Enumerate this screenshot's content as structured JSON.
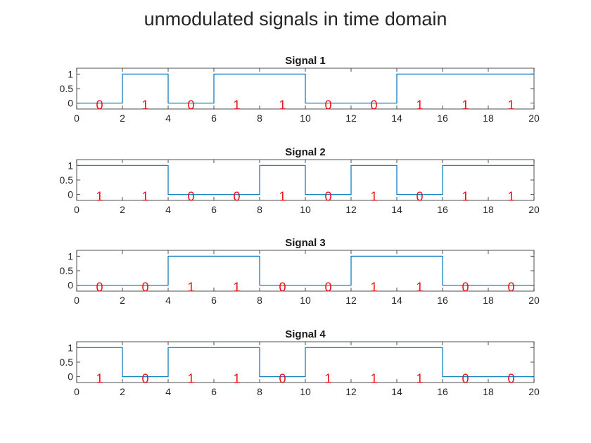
{
  "figure": {
    "title": "unmodulated signals in time domain"
  },
  "colors": {
    "line": "#0072BD",
    "bit_label": "#E8141A",
    "axis": "#262626",
    "background": "#ffffff"
  },
  "chart_data": [
    {
      "type": "line",
      "title": "Signal 1",
      "x": [
        0,
        2,
        2,
        4,
        4,
        6,
        6,
        10,
        10,
        14,
        14,
        20
      ],
      "y": [
        0,
        0,
        1,
        1,
        0,
        0,
        1,
        1,
        0,
        0,
        1,
        1
      ],
      "bits": [
        {
          "x": 1,
          "label": "0"
        },
        {
          "x": 3,
          "label": "1"
        },
        {
          "x": 5,
          "label": "0"
        },
        {
          "x": 7,
          "label": "1"
        },
        {
          "x": 9,
          "label": "1"
        },
        {
          "x": 11,
          "label": "0"
        },
        {
          "x": 13,
          "label": "0"
        },
        {
          "x": 15,
          "label": "1"
        },
        {
          "x": 17,
          "label": "1"
        },
        {
          "x": 19,
          "label": "1"
        }
      ],
      "xlim": [
        0,
        20
      ],
      "ylim": [
        -0.2,
        1.2
      ],
      "xticks": [
        0,
        2,
        4,
        6,
        8,
        10,
        12,
        14,
        16,
        18,
        20
      ],
      "yticks": [
        0,
        0.5,
        1
      ],
      "grid": false
    },
    {
      "type": "line",
      "title": "Signal 2",
      "x": [
        0,
        4,
        4,
        8,
        8,
        10,
        10,
        12,
        12,
        14,
        14,
        16,
        16,
        20
      ],
      "y": [
        1,
        1,
        0,
        0,
        1,
        1,
        0,
        0,
        1,
        1,
        0,
        0,
        1,
        1
      ],
      "bits": [
        {
          "x": 1,
          "label": "1"
        },
        {
          "x": 3,
          "label": "1"
        },
        {
          "x": 5,
          "label": "0"
        },
        {
          "x": 7,
          "label": "0"
        },
        {
          "x": 9,
          "label": "1"
        },
        {
          "x": 11,
          "label": "0"
        },
        {
          "x": 13,
          "label": "1"
        },
        {
          "x": 15,
          "label": "0"
        },
        {
          "x": 17,
          "label": "1"
        },
        {
          "x": 19,
          "label": "1"
        }
      ],
      "xlim": [
        0,
        20
      ],
      "ylim": [
        -0.2,
        1.2
      ],
      "xticks": [
        0,
        2,
        4,
        6,
        8,
        10,
        12,
        14,
        16,
        18,
        20
      ],
      "yticks": [
        0,
        0.5,
        1
      ],
      "grid": false
    },
    {
      "type": "line",
      "title": "Signal 3",
      "x": [
        0,
        4,
        4,
        8,
        8,
        12,
        12,
        16,
        16,
        20
      ],
      "y": [
        0,
        0,
        1,
        1,
        0,
        0,
        1,
        1,
        0,
        0
      ],
      "bits": [
        {
          "x": 1,
          "label": "0"
        },
        {
          "x": 3,
          "label": "0"
        },
        {
          "x": 5,
          "label": "1"
        },
        {
          "x": 7,
          "label": "1"
        },
        {
          "x": 9,
          "label": "0"
        },
        {
          "x": 11,
          "label": "0"
        },
        {
          "x": 13,
          "label": "1"
        },
        {
          "x": 15,
          "label": "1"
        },
        {
          "x": 17,
          "label": "0"
        },
        {
          "x": 19,
          "label": "0"
        }
      ],
      "xlim": [
        0,
        20
      ],
      "ylim": [
        -0.2,
        1.2
      ],
      "xticks": [
        0,
        2,
        4,
        6,
        8,
        10,
        12,
        14,
        16,
        18,
        20
      ],
      "yticks": [
        0,
        0.5,
        1
      ],
      "grid": false
    },
    {
      "type": "line",
      "title": "Signal 4",
      "x": [
        0,
        2,
        2,
        4,
        4,
        8,
        8,
        10,
        10,
        16,
        16,
        20
      ],
      "y": [
        1,
        1,
        0,
        0,
        1,
        1,
        0,
        0,
        1,
        1,
        0,
        0
      ],
      "bits": [
        {
          "x": 1,
          "label": "1"
        },
        {
          "x": 3,
          "label": "0"
        },
        {
          "x": 5,
          "label": "1"
        },
        {
          "x": 7,
          "label": "1"
        },
        {
          "x": 9,
          "label": "0"
        },
        {
          "x": 11,
          "label": "1"
        },
        {
          "x": 13,
          "label": "1"
        },
        {
          "x": 15,
          "label": "1"
        },
        {
          "x": 17,
          "label": "0"
        },
        {
          "x": 19,
          "label": "0"
        }
      ],
      "xlim": [
        0,
        20
      ],
      "ylim": [
        -0.2,
        1.2
      ],
      "xticks": [
        0,
        2,
        4,
        6,
        8,
        10,
        12,
        14,
        16,
        18,
        20
      ],
      "yticks": [
        0,
        0.5,
        1
      ],
      "grid": false
    }
  ]
}
